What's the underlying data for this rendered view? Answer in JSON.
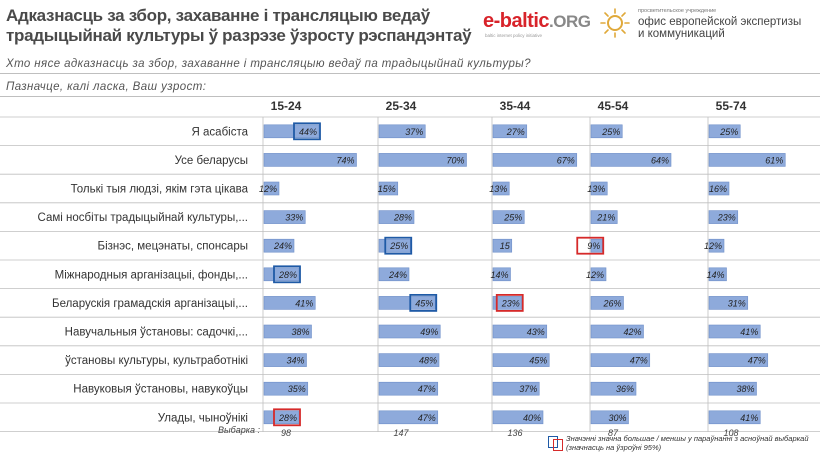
{
  "header": {
    "title": "Адказнасць за збор, захаванне і трансляцыю ведаў традыцыйнай культуры ў разрэзе ўзросту рэспандэнтаў",
    "question": "Хто нясе адказнасць за збор, захаванне і трансляцыю ведаў па традыцыйнай культуры?",
    "instruction": "Пазначце, калі ласка, Ваш узрост:"
  },
  "logos": {
    "ebaltic_name": "e-baltic",
    "ebaltic_org": ".ORG",
    "ebaltic_tagline": "baltic internet policy initiative",
    "office_small": "просветительское учреждение",
    "office_line1": "офис европейской экспертизы",
    "office_line2": "и коммуникаций"
  },
  "chart_data": {
    "type": "bar",
    "orientation": "horizontal-panels",
    "categories": [
      "Я асабіста",
      "Усе беларусы",
      "Толькі тыя людзі, якім гэта цікава",
      "Самі носбіты традыцыйнай культуры,...",
      "Бізнэс, мецэнаты, спонсары",
      "Міжнародныя арганізацыі, фонды,...",
      "Беларускія грамадскія арганізацыі,...",
      "Навучальныя ўстановы: садочкі,...",
      "ўстановы культуры, культработнікі",
      "Навуковыя ўстановы, навукоўцы",
      "Улады, чыноўнікі"
    ],
    "series": [
      {
        "name": "15-24",
        "values": [
          44,
          74,
          12,
          33,
          24,
          28,
          41,
          38,
          34,
          35,
          28
        ],
        "labels": [
          "44%",
          "74%",
          "12%",
          "33%",
          "24%",
          "28%",
          "41%",
          "38%",
          "34%",
          "35%",
          "28%"
        ],
        "highlight": [
          "blue",
          null,
          null,
          null,
          null,
          "blue",
          null,
          null,
          null,
          null,
          "red"
        ]
      },
      {
        "name": "25-34",
        "values": [
          37,
          70,
          15,
          28,
          25,
          24,
          45,
          49,
          48,
          47,
          47
        ],
        "labels": [
          "37%",
          "70%",
          "15%",
          "28%",
          "25%",
          "24%",
          "45%",
          "49%",
          "48%",
          "47%",
          "47%"
        ],
        "highlight": [
          null,
          null,
          null,
          null,
          "blue",
          null,
          "blue",
          null,
          null,
          null,
          null
        ]
      },
      {
        "name": "35-44",
        "values": [
          27,
          67,
          13,
          25,
          15,
          14,
          23,
          43,
          45,
          37,
          40
        ],
        "labels": [
          "27%",
          "67%",
          "13%",
          "25%",
          "15",
          "14%",
          "23%",
          "43%",
          "45%",
          "37%",
          "40%"
        ],
        "highlight": [
          null,
          null,
          null,
          null,
          null,
          null,
          "red",
          null,
          null,
          null,
          null
        ]
      },
      {
        "name": "45-54",
        "values": [
          25,
          64,
          13,
          21,
          9,
          12,
          26,
          42,
          47,
          36,
          30
        ],
        "labels": [
          "25%",
          "64%",
          "13%",
          "21%",
          "9%",
          "12%",
          "26%",
          "42%",
          "47%",
          "36%",
          "30%"
        ],
        "highlight": [
          null,
          null,
          null,
          null,
          "red",
          null,
          null,
          null,
          null,
          null,
          null
        ]
      },
      {
        "name": "55-74",
        "values": [
          25,
          61,
          16,
          23,
          12,
          14,
          31,
          41,
          47,
          38,
          41
        ],
        "labels": [
          "25%",
          "61%",
          "16%",
          "23%",
          "12%",
          "14%",
          "31%",
          "41%",
          "47%",
          "38%",
          "41%"
        ],
        "highlight": [
          null,
          null,
          null,
          null,
          null,
          null,
          null,
          null,
          null,
          null,
          null
        ]
      }
    ],
    "sample_label": "Выбарка :",
    "sample_sizes": [
      "98",
      "147",
      "136",
      "87",
      "108"
    ],
    "xlim": [
      0,
      100
    ],
    "colors": {
      "bar": "#8eaadb",
      "bar_border": "#6f8fc9",
      "highlight_blue": "#1f5aa6",
      "highlight_red": "#d62a2a",
      "grid": "#bfbfbf"
    },
    "legend_text": "Значэнні значна большае / меншы у параўнанні з асноўнай выбаркай (значнасць на ўзроўні 95%)"
  }
}
